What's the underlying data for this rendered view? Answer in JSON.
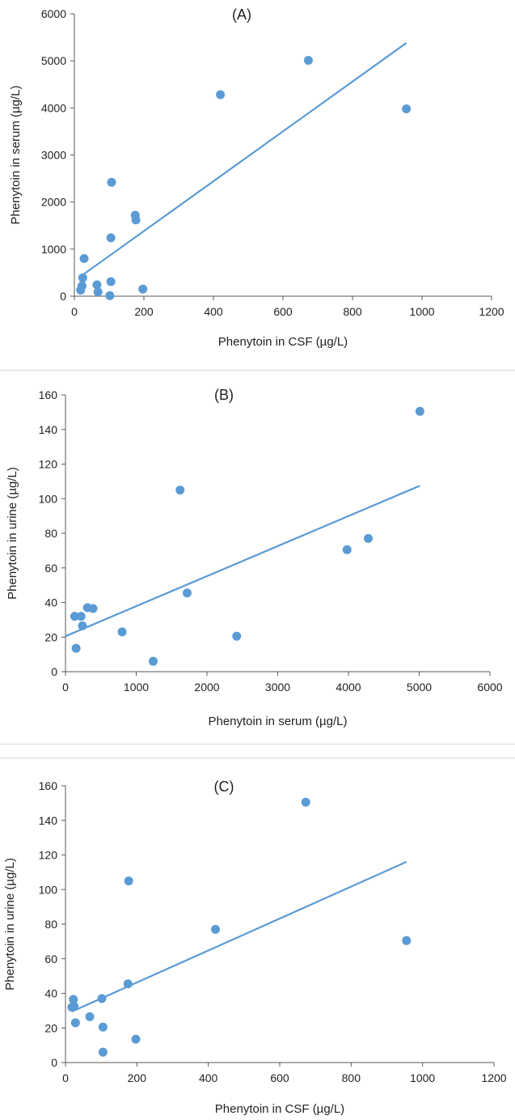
{
  "chart_data": [
    {
      "type": "scatter",
      "panel_label": "(A)",
      "xlabel": "Phenytoin in CSF (µg/L)",
      "ylabel": "Phenytoin in serum (µg/L)",
      "xlim": [
        0,
        1200
      ],
      "ylim": [
        0,
        6000
      ],
      "xticks": [
        0,
        200,
        400,
        600,
        800,
        1000,
        1200
      ],
      "yticks": [
        0,
        1000,
        2000,
        3000,
        4000,
        5000,
        6000
      ],
      "grid": false,
      "legend": "none",
      "color": "#5b9bd5",
      "points": [
        {
          "x": 18,
          "y": 130
        },
        {
          "x": 22,
          "y": 220
        },
        {
          "x": 24,
          "y": 390
        },
        {
          "x": 28,
          "y": 800
        },
        {
          "x": 65,
          "y": 240
        },
        {
          "x": 68,
          "y": 90
        },
        {
          "x": 102,
          "y": 10
        },
        {
          "x": 105,
          "y": 310
        },
        {
          "x": 105,
          "y": 1240
        },
        {
          "x": 107,
          "y": 2420
        },
        {
          "x": 175,
          "y": 1720
        },
        {
          "x": 177,
          "y": 1620
        },
        {
          "x": 197,
          "y": 150
        },
        {
          "x": 420,
          "y": 4280
        },
        {
          "x": 673,
          "y": 5010
        },
        {
          "x": 955,
          "y": 3980
        }
      ],
      "trendline": {
        "x": [
          18,
          955
        ],
        "y": [
          420,
          5380
        ]
      }
    },
    {
      "type": "scatter",
      "panel_label": "(B)",
      "xlabel": "Phenytoin in serum (µg/L)",
      "ylabel": "Phenytoin in urine (µg/L)",
      "xlim": [
        0,
        6000
      ],
      "ylim": [
        0,
        160
      ],
      "xticks": [
        0,
        1000,
        2000,
        3000,
        4000,
        5000,
        6000
      ],
      "yticks": [
        0,
        20,
        40,
        60,
        80,
        100,
        120,
        140,
        160
      ],
      "grid": false,
      "legend": "none",
      "color": "#5b9bd5",
      "points": [
        {
          "x": 130,
          "y": 32
        },
        {
          "x": 150,
          "y": 13.5
        },
        {
          "x": 220,
          "y": 32
        },
        {
          "x": 240,
          "y": 26.5
        },
        {
          "x": 310,
          "y": 37
        },
        {
          "x": 390,
          "y": 36.5
        },
        {
          "x": 800,
          "y": 23
        },
        {
          "x": 1240,
          "y": 6
        },
        {
          "x": 1620,
          "y": 105
        },
        {
          "x": 1720,
          "y": 45.5
        },
        {
          "x": 2420,
          "y": 20.5
        },
        {
          "x": 3980,
          "y": 70.5
        },
        {
          "x": 4280,
          "y": 77
        },
        {
          "x": 5010,
          "y": 150.5
        }
      ],
      "trendline": {
        "x": [
          0,
          5010
        ],
        "y": [
          20.5,
          107.5
        ]
      }
    },
    {
      "type": "scatter",
      "panel_label": "(C)",
      "xlabel": "Phenytoin in CSF (µg/L)",
      "ylabel": "Phenytoin in urine (µg/L)",
      "xlim": [
        0,
        1200
      ],
      "ylim": [
        0,
        160
      ],
      "xticks": [
        0,
        200,
        400,
        600,
        800,
        1000,
        1200
      ],
      "yticks": [
        0,
        20,
        40,
        60,
        80,
        100,
        120,
        140,
        160
      ],
      "grid": false,
      "legend": "none",
      "color": "#5b9bd5",
      "points": [
        {
          "x": 18,
          "y": 32
        },
        {
          "x": 22,
          "y": 36.5
        },
        {
          "x": 24,
          "y": 32.5
        },
        {
          "x": 28,
          "y": 23
        },
        {
          "x": 68,
          "y": 26.5
        },
        {
          "x": 102,
          "y": 37
        },
        {
          "x": 105,
          "y": 20.5
        },
        {
          "x": 105,
          "y": 6
        },
        {
          "x": 175,
          "y": 45.5
        },
        {
          "x": 177,
          "y": 105
        },
        {
          "x": 197,
          "y": 13.5
        },
        {
          "x": 420,
          "y": 77
        },
        {
          "x": 673,
          "y": 150.5
        },
        {
          "x": 955,
          "y": 70.5
        }
      ],
      "trendline": {
        "x": [
          18,
          955
        ],
        "y": [
          29.5,
          116
        ]
      }
    }
  ]
}
